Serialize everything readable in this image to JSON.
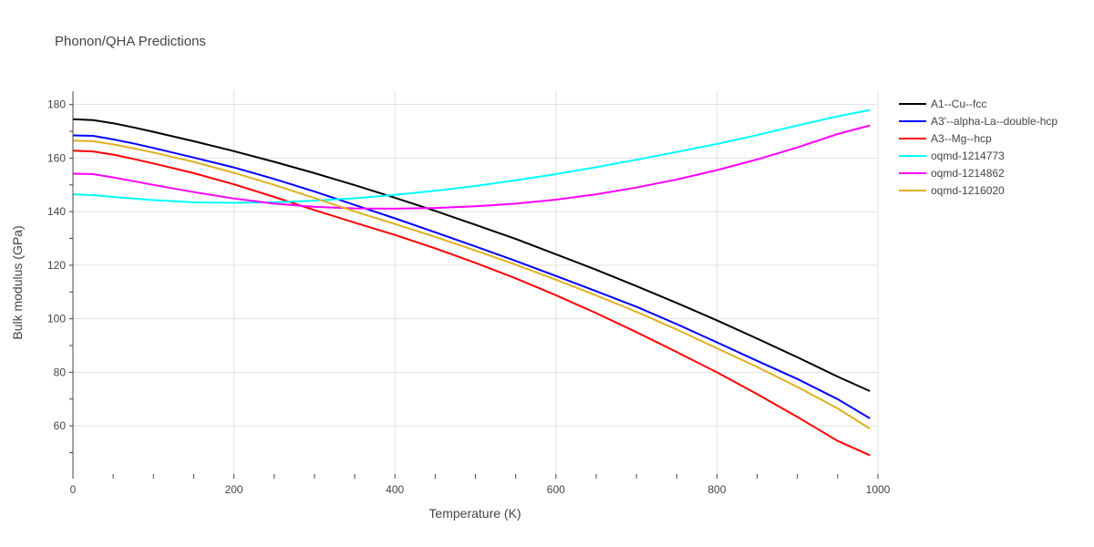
{
  "chart_data": {
    "type": "line",
    "title": "Phonon/QHA Predictions",
    "xlabel": "Temperature (K)",
    "ylabel": "Bulk modulus (GPa)",
    "xlim": [
      0,
      1000
    ],
    "ylim": [
      42,
      185
    ],
    "xticks": [
      0,
      200,
      400,
      600,
      800,
      1000
    ],
    "yticks": [
      60,
      80,
      100,
      120,
      140,
      160,
      180
    ],
    "grid": true,
    "legend_position": "right",
    "x": [
      0,
      25,
      50,
      75,
      100,
      150,
      200,
      250,
      300,
      350,
      400,
      450,
      500,
      550,
      600,
      650,
      700,
      750,
      800,
      850,
      900,
      950,
      990
    ],
    "series": [
      {
        "name": "A1--Cu--fcc",
        "color": "#000000",
        "values": [
          174.5,
          174.2,
          173.0,
          171.5,
          169.8,
          166.3,
          162.6,
          158.6,
          154.4,
          149.9,
          145.2,
          140.3,
          135.1,
          129.8,
          124.1,
          118.3,
          112.2,
          105.9,
          99.4,
          92.6,
          85.6,
          78.4,
          73.0
        ]
      },
      {
        "name": "A3'--alpha-La--double-hcp",
        "color": "#0000ff",
        "values": [
          168.5,
          168.3,
          167.0,
          165.5,
          163.8,
          160.2,
          156.5,
          152.2,
          147.5,
          142.5,
          137.5,
          132.3,
          127.0,
          121.6,
          116.0,
          110.3,
          104.5,
          98.0,
          91.2,
          84.3,
          77.5,
          70.0,
          62.8
        ]
      },
      {
        "name": "A3--Mg--hcp",
        "color": "#ff0000",
        "values": [
          162.8,
          162.5,
          161.3,
          159.7,
          158.0,
          154.4,
          150.2,
          145.5,
          140.6,
          135.9,
          131.3,
          126.3,
          120.9,
          115.1,
          108.8,
          102.1,
          95.0,
          87.6,
          80.0,
          71.9,
          63.3,
          54.4,
          49.0
        ]
      },
      {
        "name": "oqmd-1214773",
        "color": "#00ffff",
        "values": [
          146.5,
          146.2,
          145.5,
          144.9,
          144.3,
          143.5,
          143.3,
          143.5,
          144.1,
          145.0,
          146.3,
          147.8,
          149.6,
          151.7,
          154.0,
          156.6,
          159.4,
          162.3,
          165.3,
          168.6,
          172.2,
          175.6,
          178.0
        ]
      },
      {
        "name": "oqmd-1214862",
        "color": "#ff00ff",
        "values": [
          154.2,
          154.0,
          152.8,
          151.4,
          150.0,
          147.3,
          144.9,
          143.0,
          141.8,
          141.2,
          141.1,
          141.4,
          142.0,
          143.0,
          144.5,
          146.5,
          149.0,
          152.0,
          155.5,
          159.5,
          164.0,
          169.0,
          172.2
        ]
      },
      {
        "name": "oqmd-1216020",
        "color": "#e0b020",
        "values": [
          166.5,
          166.3,
          165.1,
          163.7,
          162.1,
          158.6,
          154.5,
          150.0,
          145.1,
          140.1,
          135.4,
          130.6,
          125.5,
          120.2,
          114.6,
          108.7,
          102.6,
          96.0,
          89.0,
          82.0,
          74.5,
          66.5,
          59.0
        ]
      }
    ]
  }
}
